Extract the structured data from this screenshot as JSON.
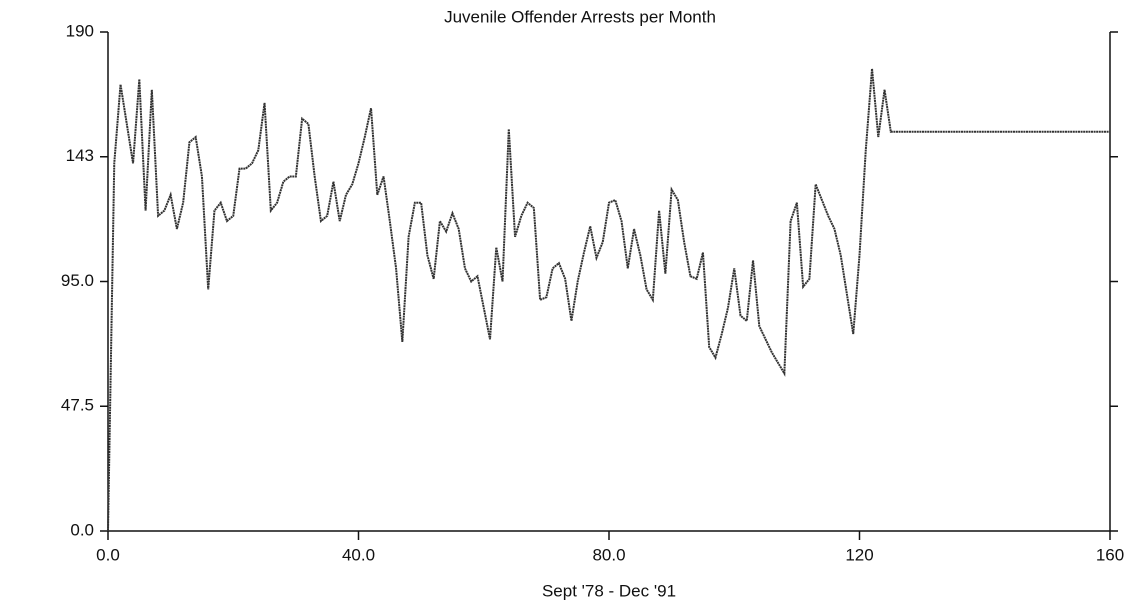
{
  "chart_data": {
    "type": "line",
    "title": "Juvenile Offender Arrests per Month",
    "x_label": "Sept '78 - Dec '91",
    "x": [
      0,
      1,
      2,
      3,
      4,
      5,
      6,
      7,
      8,
      9,
      10,
      11,
      12,
      13,
      14,
      15,
      16,
      17,
      18,
      19,
      20,
      21,
      22,
      23,
      24,
      25,
      26,
      27,
      28,
      29,
      30,
      31,
      32,
      33,
      34,
      35,
      36,
      37,
      38,
      39,
      40,
      41,
      42,
      43,
      44,
      45,
      46,
      47,
      48,
      49,
      50,
      51,
      52,
      53,
      54,
      55,
      56,
      57,
      58,
      59,
      60,
      61,
      62,
      63,
      64,
      65,
      66,
      67,
      68,
      69,
      70,
      71,
      72,
      73,
      74,
      75,
      76,
      77,
      78,
      79,
      80,
      81,
      82,
      83,
      84,
      85,
      86,
      87,
      88,
      89,
      90,
      91,
      92,
      93,
      94,
      95,
      96,
      97,
      98,
      99,
      100,
      101,
      102,
      103,
      104,
      105,
      106,
      107,
      108,
      109,
      110,
      111,
      112,
      113,
      114,
      115,
      116,
      117,
      118,
      119,
      120,
      121,
      122,
      123,
      124,
      125,
      126,
      127,
      128,
      129,
      130,
      131,
      132,
      133,
      134,
      135,
      136,
      137,
      138,
      139,
      140,
      141,
      142,
      143,
      144,
      145,
      146,
      147,
      148,
      149,
      150,
      151,
      152,
      153,
      154,
      155,
      156,
      157,
      158,
      159,
      160
    ],
    "series": [
      {
        "color": "#333333",
        "values": [
          0,
          140,
          170,
          155,
          140,
          172,
          122,
          168,
          120,
          122,
          128,
          115,
          125,
          148,
          150,
          135,
          92,
          122,
          125,
          118,
          120,
          138,
          138,
          140,
          145,
          163,
          122,
          125,
          133,
          135,
          135,
          157,
          155,
          135,
          118,
          120,
          133,
          118,
          128,
          132,
          140,
          150,
          161,
          128,
          135,
          118,
          100,
          72,
          112,
          125,
          125,
          105,
          96,
          118,
          114,
          121,
          115,
          100,
          95,
          97,
          85,
          73,
          108,
          95,
          153,
          112,
          120,
          125,
          123,
          88,
          89,
          100,
          102,
          96,
          80,
          95,
          106,
          116,
          104,
          110,
          125,
          126,
          118,
          100,
          115,
          105,
          92,
          88,
          122,
          98,
          130,
          126,
          110,
          97,
          96,
          106,
          70,
          66,
          75,
          85,
          100,
          82,
          80,
          103,
          78,
          73,
          68,
          64,
          60,
          118,
          125,
          93,
          96,
          132,
          126,
          120,
          115,
          105,
          90,
          75,
          105,
          145,
          176,
          150,
          168,
          152,
          152,
          152,
          152,
          152,
          152,
          152,
          152,
          152,
          152,
          152,
          152,
          152,
          152,
          152,
          152,
          152,
          152,
          152,
          152,
          152,
          152,
          152,
          152,
          152,
          152,
          152,
          152,
          152,
          152,
          152,
          152,
          152,
          152,
          152,
          152
        ]
      }
    ],
    "xlim": [
      0,
      160
    ],
    "xticks": [
      {
        "value": 0,
        "label": "0.0"
      },
      {
        "value": 40,
        "label": "40.0"
      },
      {
        "value": 80,
        "label": "80.0"
      },
      120,
      160
    ],
    "ylim": [
      0,
      190
    ],
    "yticks": [
      {
        "value": 0,
        "label": "0.0"
      },
      47.5,
      {
        "value": 95,
        "label": "95.0"
      },
      {
        "value": 142.5,
        "label": "143"
      },
      190
    ]
  }
}
